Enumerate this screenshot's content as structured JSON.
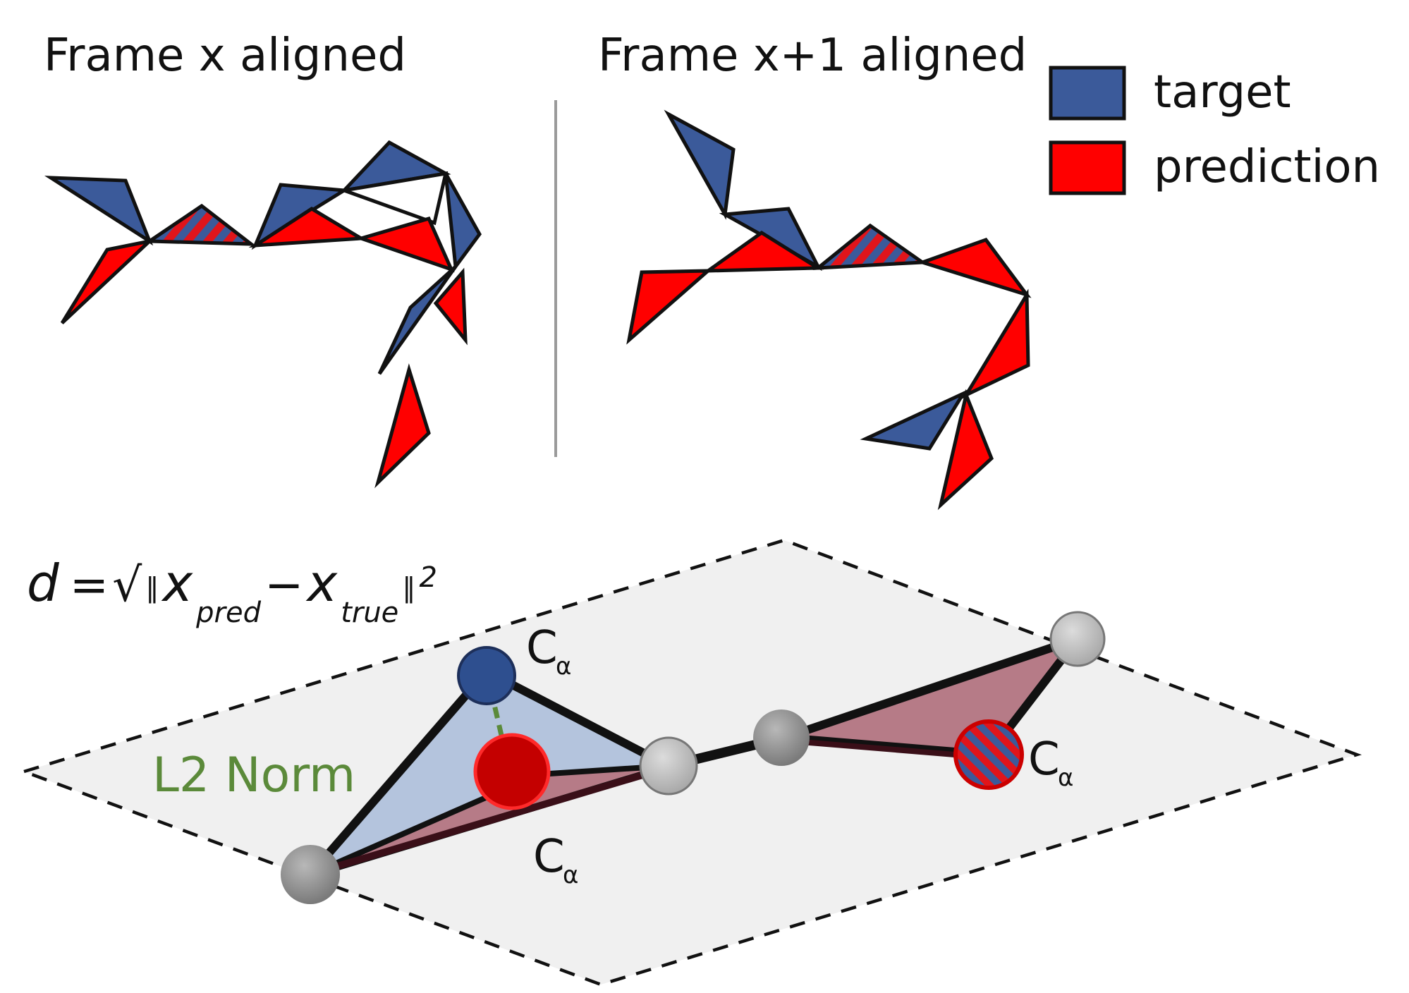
{
  "panels": {
    "left_title": "Frame x aligned",
    "right_title": "Frame x+1 aligned"
  },
  "legend": {
    "items": [
      {
        "label": "target",
        "color": "#3b5a9a"
      },
      {
        "label": "prediction",
        "color": "#ff0000"
      }
    ]
  },
  "formula": {
    "d": "d",
    "eq": "=",
    "sqrt": "√",
    "norm_open": "‖",
    "x1": "x",
    "x1_sub": "pred",
    "minus": "−",
    "x2": "x",
    "x2_sub": "true",
    "norm_close": "‖",
    "sup": "2"
  },
  "residue_labels": {
    "ca_main": "C",
    "ca_sub": "α"
  },
  "l2_label": "L2 Norm",
  "colors": {
    "target": "#3b5a9a",
    "prediction": "#ff0000",
    "plane": "#f0f0f0",
    "atom_grey": "#8c8c8c",
    "l2_green": "#5b8a3a"
  }
}
